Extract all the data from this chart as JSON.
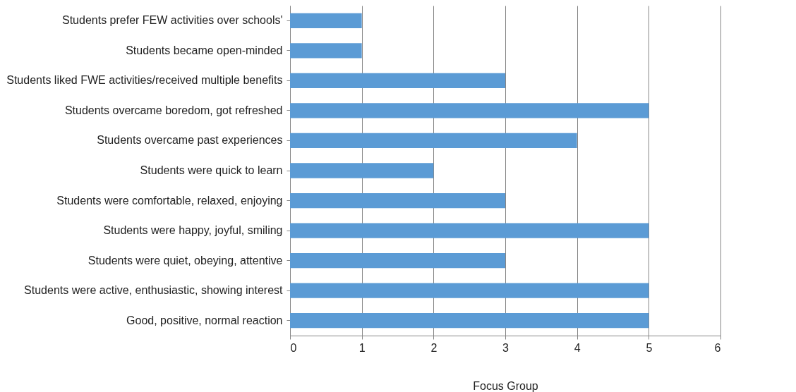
{
  "chart_data": {
    "type": "bar",
    "orientation": "horizontal",
    "categories": [
      "Students prefer FEW activities over schools'",
      "Students became open-minded",
      "Students liked FWE activities/received multiple benefits",
      "Students overcame boredom, got refreshed",
      "Students overcame past experiences",
      "Students were quick to learn",
      "Students were comfortable, relaxed, enjoying ",
      "Students were happy, joyful, smiling",
      "Students were quiet, obeying, attentive",
      "Students were active, enthusiastic, showing interest",
      "Good, positive, normal reaction"
    ],
    "values": [
      1,
      1,
      3,
      5,
      4,
      2,
      3,
      5,
      3,
      5,
      5
    ],
    "color": "#5b9bd5",
    "xlim": [
      0,
      6
    ],
    "xticks": [
      0,
      1,
      2,
      3,
      4,
      5,
      6
    ],
    "grid": "x",
    "xlabel": "Focus Group"
  }
}
